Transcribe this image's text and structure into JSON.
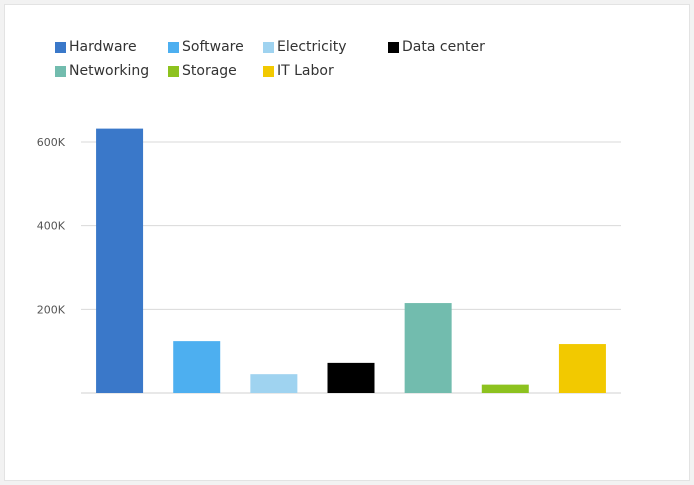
{
  "chart_data": {
    "type": "bar",
    "title": "",
    "xlabel": "",
    "ylabel": "",
    "ylim": [
      0,
      600000
    ],
    "grid": true,
    "legend_placement": "top-left",
    "y_ticks": [
      {
        "value": 200000,
        "label": "200K"
      },
      {
        "value": 400000,
        "label": "400K"
      },
      {
        "value": 600000,
        "label": "600K"
      }
    ],
    "categories": [
      "Hardware",
      "Software",
      "Electricity",
      "Data center",
      "Networking",
      "Storage",
      "IT Labor"
    ],
    "values": [
      632000,
      124000,
      45000,
      72000,
      215000,
      20000,
      117000
    ],
    "colors": [
      "#3a78c9",
      "#4daff0",
      "#9fd3f0",
      "#000000",
      "#72bcae",
      "#8dc21f",
      "#f2c900"
    ]
  }
}
